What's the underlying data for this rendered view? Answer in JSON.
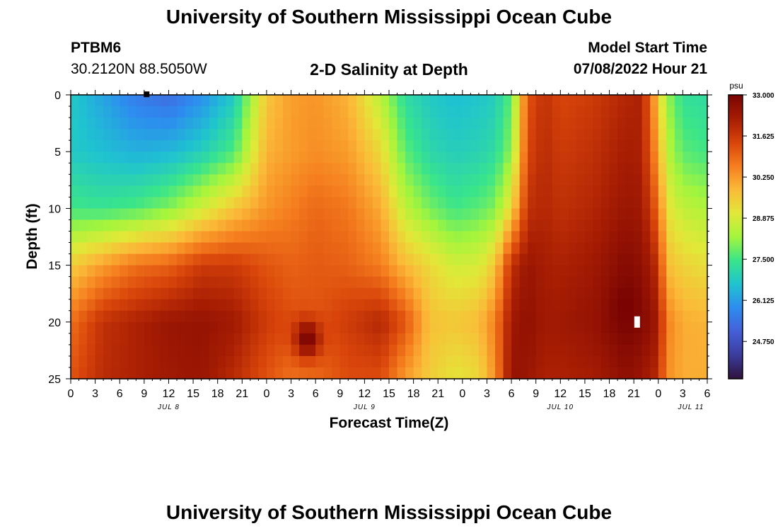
{
  "page": {
    "title": "University of Southern Mississippi Ocean Cube",
    "footer_title": "University of Southern Mississippi Ocean Cube",
    "station_id": "PTBM6",
    "station_coords": "30.2120N  88.5050W",
    "chart_heading": "2-D Salinity at Depth",
    "model_start_label": "Model Start Time",
    "model_start_value": "07/08/2022 Hour 21"
  },
  "colors": {
    "scale": [
      "#30123b",
      "#3b3c9c",
      "#4560d8",
      "#2d8cf0",
      "#1fc3d0",
      "#3ae58a",
      "#a4f53c",
      "#e2e838",
      "#fbb938",
      "#f57d1e",
      "#d8440a",
      "#a51c03",
      "#7a0403"
    ]
  },
  "chart_data": {
    "type": "heatmap",
    "title": "2-D Salinity at Depth",
    "xlabel": "Forecast Time(Z)",
    "ylabel": "Depth (ft)",
    "x_ticks": [
      "0",
      "3",
      "6",
      "9",
      "12",
      "15",
      "18",
      "21",
      "0",
      "3",
      "6",
      "9",
      "12",
      "15",
      "18",
      "21",
      "0",
      "3",
      "6",
      "9",
      "12",
      "15",
      "18",
      "21",
      "0",
      "3",
      "6"
    ],
    "x_range_hours": [
      0,
      78
    ],
    "day_labels": [
      {
        "label": "JUL 8",
        "hour": 12
      },
      {
        "label": "JUL 9",
        "hour": 36
      },
      {
        "label": "JUL 10",
        "hour": 60
      },
      {
        "label": "JUL 11",
        "hour": 76
      }
    ],
    "y_ticks": [
      "0",
      "5",
      "10",
      "15",
      "20",
      "25"
    ],
    "ylim": [
      0,
      25
    ],
    "y_inverted": true,
    "colorbar": {
      "unit": "psu",
      "min": 23.5,
      "max": 33.0,
      "tick_labels": [
        "33.000",
        "31.625",
        "30.250",
        "28.875",
        "27.500",
        "26.125",
        "24.750"
      ]
    },
    "salinity_anchor_hours": [
      0,
      4,
      8,
      12,
      16,
      20,
      24,
      27,
      30,
      34,
      38,
      41,
      44,
      47,
      50,
      52,
      54,
      56,
      58,
      60,
      64,
      68,
      70,
      72,
      73,
      75,
      78
    ],
    "salinity_anchor_depths_ft": [
      0,
      5,
      10,
      15,
      20,
      25
    ],
    "salinity_profiles_psu": [
      [
        26.8,
        26.8,
        27.5,
        29.5,
        30.8,
        31.2
      ],
      [
        26.2,
        26.6,
        27.4,
        30.2,
        31.8,
        31.9
      ],
      [
        25.6,
        26.4,
        27.6,
        30.8,
        32.1,
        32.1
      ],
      [
        25.3,
        26.5,
        28.0,
        31.0,
        32.4,
        32.3
      ],
      [
        25.9,
        26.9,
        28.8,
        31.6,
        32.5,
        32.4
      ],
      [
        26.8,
        27.6,
        29.6,
        31.6,
        32.3,
        31.9
      ],
      [
        29.6,
        29.9,
        30.3,
        31.2,
        31.6,
        31.2
      ],
      [
        30.2,
        30.2,
        30.6,
        31.0,
        31.3,
        30.8
      ],
      [
        30.3,
        30.4,
        30.9,
        31.1,
        31.2,
        30.9
      ],
      [
        29.9,
        30.2,
        30.7,
        31.0,
        31.6,
        31.3
      ],
      [
        28.5,
        29.3,
        30.0,
        30.6,
        32.0,
        31.3
      ],
      [
        27.2,
        27.7,
        28.6,
        29.8,
        31.2,
        30.2
      ],
      [
        26.8,
        27.1,
        27.9,
        29.3,
        29.7,
        29.5
      ],
      [
        26.6,
        26.9,
        27.5,
        28.8,
        29.6,
        29.1
      ],
      [
        26.7,
        27.0,
        27.7,
        28.9,
        29.8,
        29.3
      ],
      [
        26.9,
        27.2,
        28.0,
        29.6,
        30.6,
        30.4
      ],
      [
        27.7,
        28.1,
        29.3,
        31.8,
        32.3,
        32.5
      ],
      [
        31.2,
        31.4,
        31.8,
        32.4,
        32.6,
        32.4
      ],
      [
        31.8,
        31.9,
        32.0,
        32.2,
        32.3,
        32.1
      ],
      [
        31.4,
        31.6,
        31.8,
        32.1,
        32.3,
        32.1
      ],
      [
        31.6,
        31.8,
        32.0,
        32.3,
        32.5,
        32.2
      ],
      [
        32.0,
        32.2,
        32.4,
        32.8,
        33.0,
        32.6
      ],
      [
        32.1,
        32.1,
        32.3,
        32.6,
        32.8,
        32.4
      ],
      [
        29.6,
        30.1,
        30.9,
        31.8,
        32.3,
        31.9
      ],
      [
        28.2,
        28.6,
        29.2,
        29.8,
        30.6,
        30.4
      ],
      [
        27.3,
        27.7,
        28.6,
        29.4,
        30.0,
        30.0
      ],
      [
        27.2,
        27.5,
        28.4,
        29.2,
        29.9,
        30.0
      ]
    ],
    "hotspots": [
      {
        "hour": 29,
        "depth_ft": 21.5,
        "value_psu": 33.0
      },
      {
        "hour": 68,
        "depth_ft": 18.5,
        "value_psu": 33.0
      }
    ],
    "markers": [
      {
        "hour": 9.3,
        "depth_ft": 0.2,
        "color": "#000000"
      },
      {
        "hour": 69.4,
        "depth_ft": 20.0,
        "color": "#ffffff"
      }
    ]
  }
}
